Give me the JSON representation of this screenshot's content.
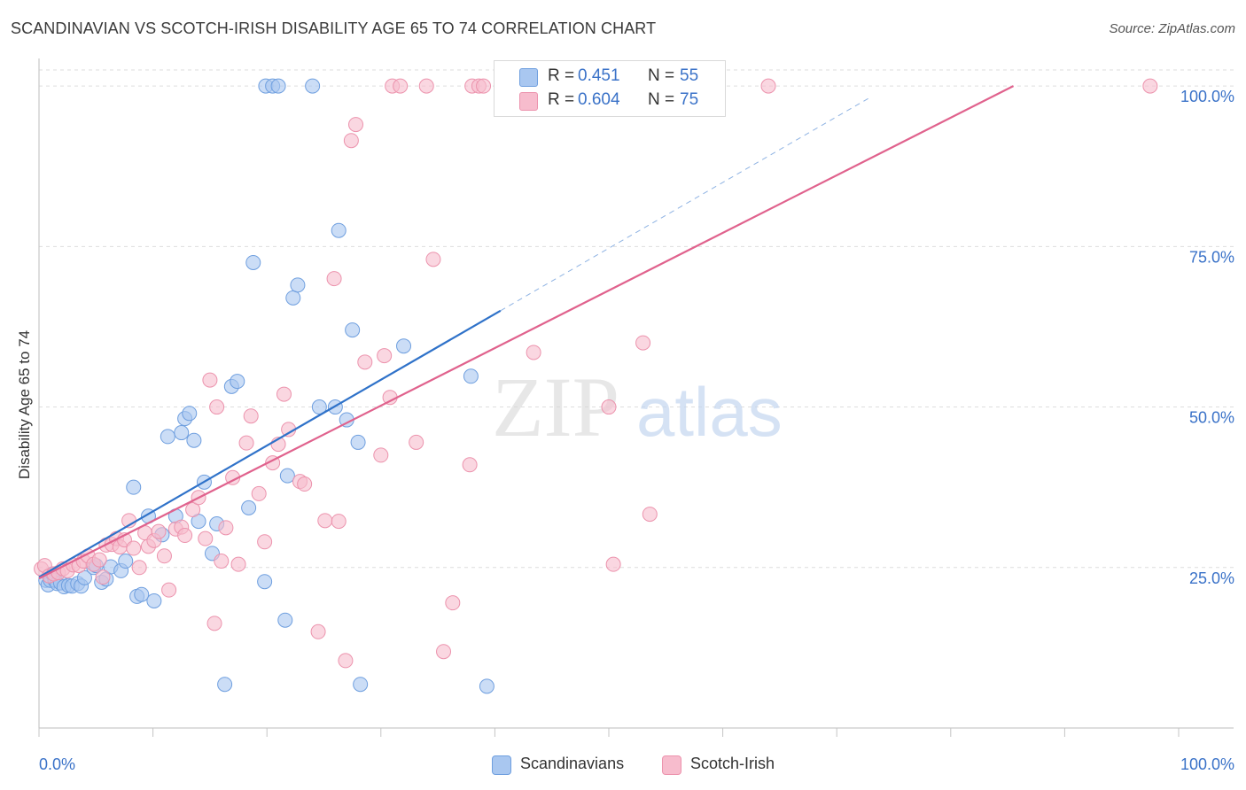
{
  "title": "SCANDINAVIAN VS SCOTCH-IRISH DISABILITY AGE 65 TO 74 CORRELATION CHART",
  "source": "Source: ZipAtlas.com",
  "watermark": {
    "zip": "ZIP",
    "atlas": "atlas"
  },
  "legend": {
    "rows": [
      {
        "r_label": "R =",
        "r_value": "0.451",
        "n_label": "N =",
        "n_value": "55"
      },
      {
        "r_label": "R =",
        "r_value": "0.604",
        "n_label": "N =",
        "n_value": "75"
      }
    ]
  },
  "bottom_legend": [
    "Scandinavians",
    "Scotch-Irish"
  ],
  "colors": {
    "blue_fill": "#a9c7f0",
    "blue_stroke": "#6f9fdf",
    "blue_line": "#2f72c9",
    "pink_fill": "#f7bccd",
    "pink_stroke": "#ec93ad",
    "pink_line": "#e0628d",
    "tick_text": "#3a72c8",
    "grid": "#dddddd"
  },
  "chart_data": {
    "type": "scatter",
    "title": "SCANDINAVIAN VS SCOTCH-IRISH DISABILITY AGE 65 TO 74 CORRELATION CHART",
    "xlabel": "",
    "ylabel": "Disability Age 65 to 74",
    "xlim": [
      0,
      100
    ],
    "ylim": [
      0,
      102.5
    ],
    "x_tick_labels": [
      "0.0%",
      "100.0%"
    ],
    "y_ticks": [
      25,
      50,
      75,
      100
    ],
    "y_tick_labels": [
      "25.0%",
      "50.0%",
      "75.0%",
      "100.0%"
    ],
    "series": [
      {
        "name": "Scandinavians",
        "color": "blue",
        "r": 0.451,
        "n": 55,
        "trend": {
          "x0": 0,
          "y0": 23.5,
          "x1": 40.5,
          "y1": 65.0,
          "dash_x1": 73.0
        },
        "points": [
          [
            0.6,
            23.0
          ],
          [
            0.8,
            22.3
          ],
          [
            1.0,
            23.0
          ],
          [
            1.2,
            24.0
          ],
          [
            1.4,
            23.0
          ],
          [
            1.6,
            22.5
          ],
          [
            1.9,
            22.6
          ],
          [
            2.2,
            22.0
          ],
          [
            2.6,
            22.2
          ],
          [
            2.9,
            22.1
          ],
          [
            3.4,
            22.5
          ],
          [
            3.7,
            22.1
          ],
          [
            4.0,
            23.4
          ],
          [
            4.8,
            25.0
          ],
          [
            5.0,
            25.3
          ],
          [
            5.5,
            22.7
          ],
          [
            5.9,
            23.2
          ],
          [
            6.3,
            25.1
          ],
          [
            7.2,
            24.5
          ],
          [
            7.6,
            26.0
          ],
          [
            8.3,
            37.5
          ],
          [
            8.6,
            20.5
          ],
          [
            9.0,
            20.8
          ],
          [
            9.6,
            33.0
          ],
          [
            10.1,
            19.8
          ],
          [
            10.8,
            30.1
          ],
          [
            11.3,
            45.4
          ],
          [
            12.0,
            33.0
          ],
          [
            12.5,
            46.0
          ],
          [
            12.8,
            48.2
          ],
          [
            13.2,
            49.0
          ],
          [
            13.6,
            44.8
          ],
          [
            14.0,
            32.2
          ],
          [
            14.5,
            38.3
          ],
          [
            15.2,
            27.2
          ],
          [
            15.6,
            31.8
          ],
          [
            16.3,
            6.8
          ],
          [
            16.9,
            53.2
          ],
          [
            17.4,
            54.0
          ],
          [
            18.4,
            34.3
          ],
          [
            18.8,
            72.5
          ],
          [
            19.8,
            22.8
          ],
          [
            19.9,
            100.0
          ],
          [
            20.5,
            100.0
          ],
          [
            21.0,
            100.0
          ],
          [
            21.6,
            16.8
          ],
          [
            21.8,
            39.3
          ],
          [
            22.3,
            67.0
          ],
          [
            22.7,
            69.0
          ],
          [
            24.0,
            100.0
          ],
          [
            24.6,
            50.0
          ],
          [
            26.0,
            50.0
          ],
          [
            26.3,
            77.5
          ],
          [
            27.0,
            48.0
          ],
          [
            27.5,
            62.0
          ],
          [
            28.0,
            44.5
          ],
          [
            28.2,
            6.8
          ],
          [
            32.0,
            59.5
          ],
          [
            37.9,
            54.8
          ],
          [
            39.3,
            6.5
          ]
        ]
      },
      {
        "name": "Scotch-Irish",
        "color": "pink",
        "r": 0.604,
        "n": 75,
        "trend": {
          "x0": 0,
          "y0": 23.3,
          "x1": 85.5,
          "y1": 100.0
        },
        "points": [
          [
            0.2,
            24.8
          ],
          [
            0.5,
            25.3
          ],
          [
            0.9,
            23.7
          ],
          [
            1.3,
            24.0
          ],
          [
            1.7,
            24.2
          ],
          [
            2.1,
            24.8
          ],
          [
            2.5,
            24.5
          ],
          [
            3.0,
            25.4
          ],
          [
            3.5,
            25.3
          ],
          [
            3.9,
            26.0
          ],
          [
            4.3,
            26.8
          ],
          [
            4.8,
            25.5
          ],
          [
            5.3,
            26.2
          ],
          [
            5.6,
            23.5
          ],
          [
            5.9,
            28.5
          ],
          [
            6.4,
            28.6
          ],
          [
            6.8,
            29.5
          ],
          [
            7.1,
            28.2
          ],
          [
            7.5,
            29.3
          ],
          [
            7.9,
            32.3
          ],
          [
            8.3,
            28.0
          ],
          [
            8.8,
            25.0
          ],
          [
            9.3,
            30.4
          ],
          [
            9.6,
            28.3
          ],
          [
            10.1,
            29.2
          ],
          [
            10.5,
            30.6
          ],
          [
            11.0,
            26.8
          ],
          [
            11.4,
            21.5
          ],
          [
            12.0,
            31.0
          ],
          [
            12.5,
            31.3
          ],
          [
            12.8,
            30.0
          ],
          [
            13.5,
            34.0
          ],
          [
            14.0,
            35.9
          ],
          [
            14.6,
            29.5
          ],
          [
            15.0,
            54.2
          ],
          [
            15.4,
            16.3
          ],
          [
            15.6,
            50.0
          ],
          [
            16.0,
            26.0
          ],
          [
            16.4,
            31.2
          ],
          [
            17.0,
            39.0
          ],
          [
            17.5,
            25.5
          ],
          [
            18.2,
            44.4
          ],
          [
            18.6,
            48.6
          ],
          [
            19.3,
            36.5
          ],
          [
            19.8,
            29.0
          ],
          [
            20.5,
            41.3
          ],
          [
            21.0,
            44.2
          ],
          [
            21.5,
            52.0
          ],
          [
            21.9,
            46.5
          ],
          [
            22.9,
            38.4
          ],
          [
            23.3,
            38.0
          ],
          [
            24.5,
            15.0
          ],
          [
            25.1,
            32.3
          ],
          [
            25.9,
            70.0
          ],
          [
            26.3,
            32.2
          ],
          [
            26.9,
            10.5
          ],
          [
            27.4,
            91.5
          ],
          [
            27.8,
            94.0
          ],
          [
            28.6,
            57.0
          ],
          [
            30.0,
            42.5
          ],
          [
            30.3,
            58.0
          ],
          [
            30.8,
            51.5
          ],
          [
            31.0,
            100.0
          ],
          [
            31.7,
            100.0
          ],
          [
            33.1,
            44.5
          ],
          [
            34.0,
            100.0
          ],
          [
            34.6,
            73.0
          ],
          [
            35.5,
            11.9
          ],
          [
            36.3,
            19.5
          ],
          [
            37.8,
            41.0
          ],
          [
            38.0,
            100.0
          ],
          [
            38.6,
            100.0
          ],
          [
            39.0,
            100.0
          ],
          [
            43.4,
            58.5
          ],
          [
            50.4,
            25.5
          ],
          [
            50.0,
            50.0
          ],
          [
            53.0,
            60.0
          ],
          [
            53.6,
            33.3
          ],
          [
            64.0,
            100.0
          ],
          [
            97.5,
            100.0
          ]
        ]
      }
    ]
  }
}
